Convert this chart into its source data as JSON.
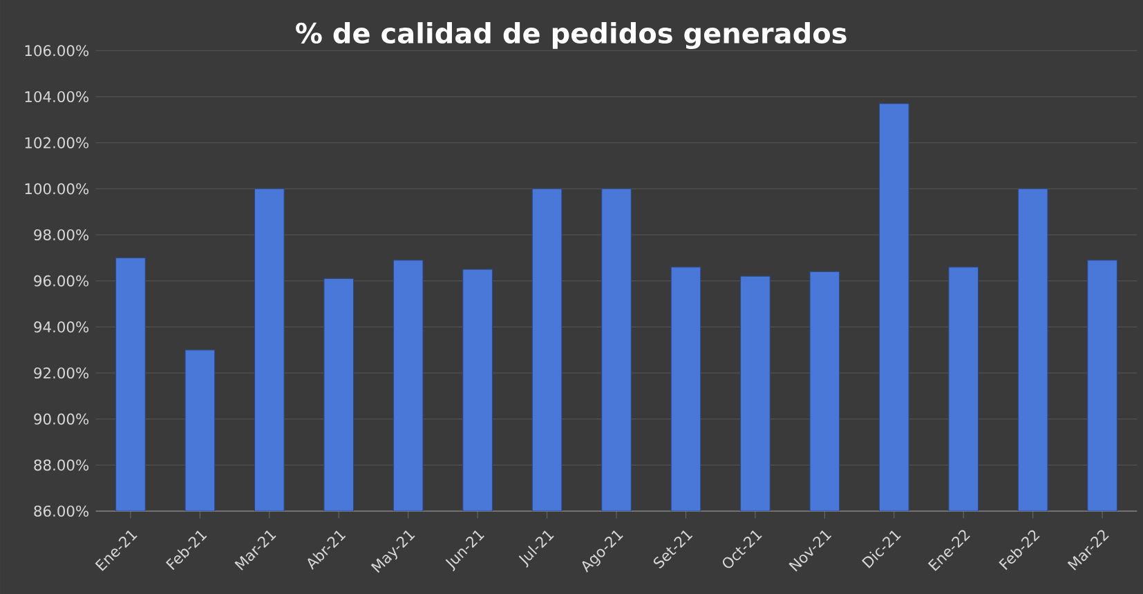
{
  "chart_data": {
    "type": "bar",
    "title": "% de calidad de pedidos generados",
    "categories": [
      "Ene-21",
      "Feb-21",
      "Mar-21",
      "Abr-21",
      "May-21",
      "Jun-21",
      "Jul-21",
      "Ago-21",
      "Set-21",
      "Oct-21",
      "Nov-21",
      "Dic-21",
      "Ene-22",
      "Feb-22",
      "Mar-22"
    ],
    "values": [
      97.0,
      93.0,
      100.0,
      96.1,
      96.9,
      96.5,
      100.0,
      100.0,
      96.6,
      96.2,
      96.4,
      103.7,
      96.6,
      100.0,
      96.9
    ],
    "color": "#4a78d8",
    "ylim": [
      86,
      106
    ],
    "yticks": [
      {
        "value": 86,
        "label": "86.00%"
      },
      {
        "value": 88,
        "label": "88.00%"
      },
      {
        "value": 90,
        "label": "90.00%"
      },
      {
        "value": 92,
        "label": "92.00%"
      },
      {
        "value": 94,
        "label": "94.00%"
      },
      {
        "value": 96,
        "label": "96.00%"
      },
      {
        "value": 98,
        "label": "98.00%"
      },
      {
        "value": 100,
        "label": "100.00%"
      },
      {
        "value": 102,
        "label": "102.00%"
      },
      {
        "value": 104,
        "label": "104.00%"
      },
      {
        "value": 106,
        "label": "106.00%"
      }
    ],
    "grid": "y"
  }
}
